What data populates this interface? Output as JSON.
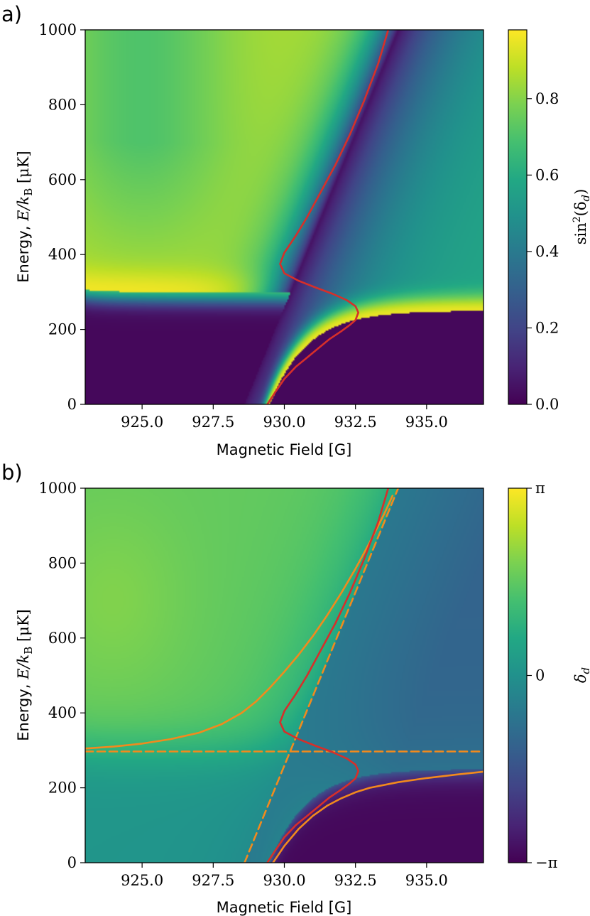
{
  "chart_data": [
    {
      "panel_label": "a)",
      "type": "heatmap",
      "colormap": "viridis",
      "quantity": "sin^2(delta_d)",
      "xlabel": "Magnetic Field [G]",
      "ylabel_prefix": "Energy, ",
      "ylabel_math": "E/k",
      "ylabel_sub": "B",
      "ylabel_suffix": " [μK]",
      "xlim": [
        923.0,
        937.0
      ],
      "ylim": [
        0,
        1000
      ],
      "xticks": [
        925.0,
        927.5,
        930.0,
        932.5,
        935.0
      ],
      "xtick_labels": [
        "925.0",
        "927.5",
        "930.0",
        "932.5",
        "935.0"
      ],
      "yticks": [
        0,
        200,
        400,
        600,
        800,
        1000
      ],
      "ytick_labels": [
        "0",
        "200",
        "400",
        "600",
        "800",
        "1000"
      ],
      "colorbar": {
        "label_fn": "sin",
        "label_pow": "2",
        "label_arg": "(δ",
        "label_sub": "d",
        "label_close": ")",
        "range": [
          0.0,
          0.98
        ],
        "ticks": [
          0.0,
          0.2,
          0.4,
          0.6,
          0.8
        ],
        "tick_labels": [
          "0.0",
          "0.2",
          "0.4",
          "0.6",
          "0.8"
        ]
      },
      "curves": [
        {
          "name": "red curve",
          "color": "#d62f2a",
          "style": "solid",
          "x": [
            929.4,
            929.7,
            930.0,
            930.4,
            930.8,
            931.2,
            931.6,
            932.0,
            932.3,
            932.5,
            932.6,
            932.5,
            932.2,
            931.7,
            931.1,
            930.5,
            930.0,
            929.85,
            930.0,
            930.4,
            930.8,
            931.3,
            931.8,
            932.3,
            932.8,
            933.3,
            933.65
          ],
          "y": [
            0,
            35,
            68,
            100,
            125,
            150,
            175,
            195,
            212,
            225,
            245,
            262,
            278,
            295,
            312,
            330,
            350,
            375,
            405,
            450,
            500,
            570,
            640,
            720,
            810,
            910,
            1000
          ]
        }
      ]
    },
    {
      "panel_label": "b)",
      "type": "heatmap",
      "colormap": "viridis",
      "quantity": "delta_d",
      "xlabel": "Magnetic Field [G]",
      "ylabel_prefix": "Energy, ",
      "ylabel_math": "E/k",
      "ylabel_sub": "B",
      "ylabel_suffix": " [μK]",
      "xlim": [
        923.0,
        937.0
      ],
      "ylim": [
        0,
        1000
      ],
      "xticks": [
        925.0,
        927.5,
        930.0,
        932.5,
        935.0
      ],
      "xtick_labels": [
        "925.0",
        "927.5",
        "930.0",
        "932.5",
        "935.0"
      ],
      "yticks": [
        0,
        200,
        400,
        600,
        800,
        1000
      ],
      "ytick_labels": [
        "0",
        "200",
        "400",
        "600",
        "800",
        "1000"
      ],
      "colorbar": {
        "label_main": "δ",
        "label_sub": "d",
        "range": [
          -3.14159,
          3.14159
        ],
        "ticks": [
          -3.14159,
          0,
          3.14159
        ],
        "tick_labels": [
          "−π",
          "0",
          "π"
        ]
      },
      "curves": [
        {
          "name": "orange upper branch",
          "color": "#f28a1d",
          "style": "solid",
          "x": [
            923.0,
            924.0,
            925.0,
            926.0,
            927.0,
            927.8,
            928.5,
            929.0,
            929.5,
            930.0,
            930.5,
            931.0,
            931.5,
            932.0,
            932.5,
            933.0,
            933.5,
            933.8
          ],
          "y": [
            305,
            310,
            318,
            330,
            347,
            370,
            400,
            430,
            468,
            510,
            555,
            605,
            660,
            720,
            785,
            855,
            930,
            980
          ]
        },
        {
          "name": "orange lower branch",
          "color": "#f28a1d",
          "style": "solid",
          "x": [
            929.6,
            930.0,
            930.5,
            931.0,
            931.5,
            932.0,
            932.5,
            933.0,
            934.0,
            935.0,
            936.0,
            937.0
          ],
          "y": [
            0,
            45,
            90,
            125,
            152,
            172,
            188,
            200,
            215,
            226,
            235,
            243
          ]
        },
        {
          "name": "orange dashed horizontal",
          "color": "#f28a1d",
          "style": "dashed",
          "x": [
            923.0,
            937.0
          ],
          "y": [
            297,
            297
          ]
        },
        {
          "name": "orange dashed diagonal",
          "color": "#f28a1d",
          "style": "dashed",
          "x": [
            928.6,
            934.0
          ],
          "y": [
            0,
            1000
          ]
        },
        {
          "name": "red curve",
          "color": "#d62f2a",
          "style": "solid",
          "x": [
            929.4,
            929.7,
            930.0,
            930.4,
            930.8,
            931.2,
            931.6,
            932.0,
            932.3,
            932.5,
            932.6,
            932.5,
            932.2,
            931.7,
            931.1,
            930.5,
            930.0,
            929.85,
            930.0,
            930.4,
            930.8,
            931.3,
            931.8,
            932.3,
            932.8,
            933.3,
            933.65
          ],
          "y": [
            0,
            35,
            68,
            100,
            125,
            150,
            175,
            195,
            212,
            225,
            245,
            262,
            278,
            295,
            312,
            330,
            350,
            375,
            405,
            450,
            500,
            570,
            640,
            720,
            810,
            910,
            1000
          ]
        }
      ]
    }
  ]
}
